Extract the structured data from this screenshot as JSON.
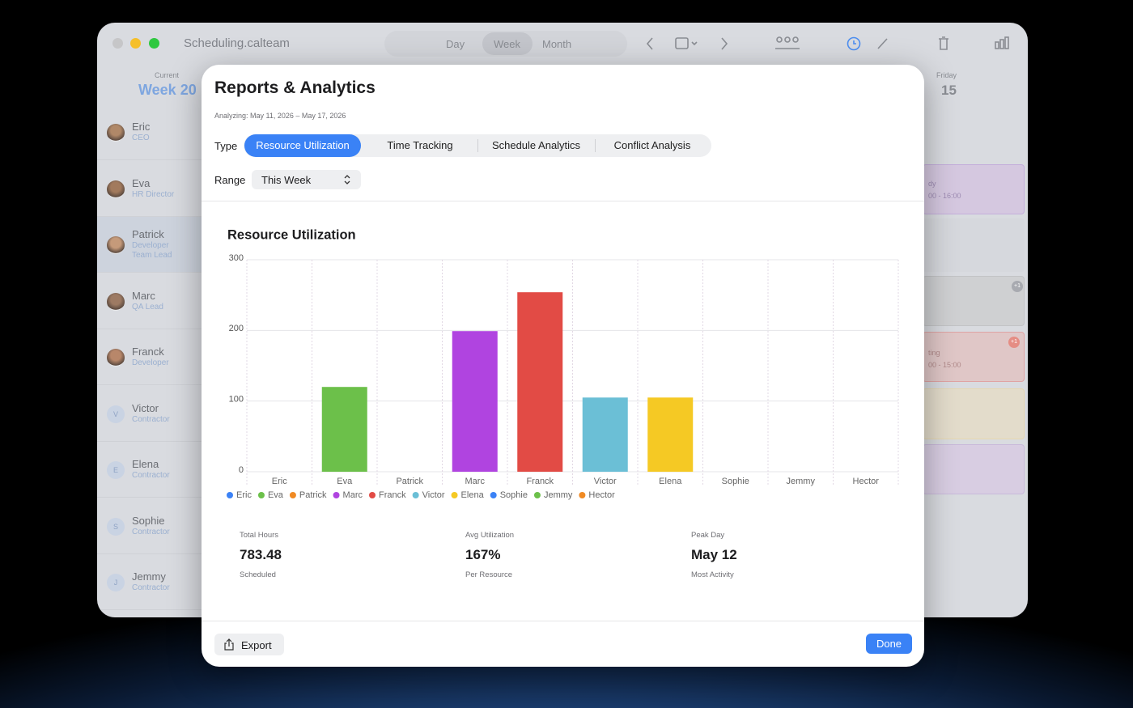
{
  "window": {
    "app_title": "Scheduling.calteam",
    "views": [
      "Day",
      "Week",
      "Month"
    ]
  },
  "sidebar": {
    "current_label": "Current",
    "week": "Week 20",
    "people": [
      {
        "name": "Eric",
        "roles": [
          "CEO"
        ]
      },
      {
        "name": "Eva",
        "roles": [
          "HR Director"
        ]
      },
      {
        "name": "Patrick",
        "roles": [
          "Developer",
          "Team Lead"
        ]
      },
      {
        "name": "Marc",
        "roles": [
          "QA Lead"
        ]
      },
      {
        "name": "Franck",
        "roles": [
          "Developer"
        ]
      },
      {
        "name": "Victor",
        "initial": "V",
        "roles": [
          "Contractor"
        ]
      },
      {
        "name": "Elena",
        "initial": "E",
        "roles": [
          "Contractor"
        ]
      },
      {
        "name": "Sophie",
        "initial": "S",
        "roles": [
          "Contractor"
        ]
      },
      {
        "name": "Jemmy",
        "initial": "J",
        "roles": [
          "Contractor"
        ]
      }
    ]
  },
  "day_column": {
    "weekday": "Friday",
    "date": "15"
  },
  "events": [
    {
      "title": "dy",
      "time": "00 - 16:00"
    },
    {
      "title": "ting",
      "time": "00 - 15:00"
    }
  ],
  "badges": [
    "+1",
    "+1"
  ],
  "dialog": {
    "title": "Reports & Analytics",
    "subtitle": "Analyzing: May 11, 2026 – May 17, 2026",
    "type_label": "Type",
    "tabs": [
      "Resource Utilization",
      "Time Tracking",
      "Schedule Analytics",
      "Conflict Analysis"
    ],
    "range_label": "Range",
    "range_value": "This Week",
    "stats": [
      {
        "label": "Total Hours",
        "value": "783.48",
        "caption": "Scheduled"
      },
      {
        "label": "Avg Utilization",
        "value": "167%",
        "caption": "Per Resource"
      },
      {
        "label": "Peak Day",
        "value": "May 12",
        "caption": "Most Activity"
      }
    ],
    "export": "Export",
    "done": "Done"
  },
  "chart_data": {
    "type": "bar",
    "title": "Resource Utilization",
    "categories": [
      "Eric",
      "Eva",
      "Patrick",
      "Marc",
      "Franck",
      "Victor",
      "Elena",
      "Sophie",
      "Jemmy",
      "Hector"
    ],
    "values": [
      0,
      120,
      0,
      199,
      254,
      105,
      105,
      0,
      0,
      0
    ],
    "colors": [
      "#3b82f6",
      "#6cc04a",
      "#f08a24",
      "#b044e0",
      "#e24b45",
      "#6bbfd6",
      "#f5c924",
      "#3b82f6",
      "#6cc04a",
      "#f08a24"
    ],
    "ylim": [
      0,
      300
    ],
    "yticks": [
      0,
      100,
      200,
      300
    ],
    "grid": true
  }
}
